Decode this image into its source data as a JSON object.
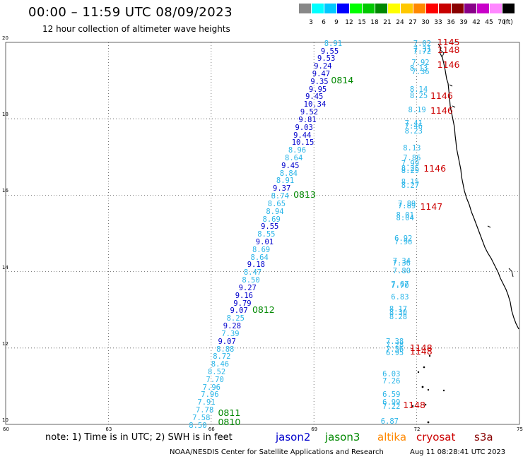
{
  "title": "00:00 – 11:59 UTC 08/09/2023",
  "subtitle": "12 hour collection of altimeter wave heights",
  "scale": {
    "labels": [
      "3",
      "6",
      "9",
      "12",
      "15",
      "18",
      "21",
      "24",
      "27",
      "30",
      "33",
      "36",
      "39",
      "42",
      "45",
      "70",
      "(ft)"
    ],
    "colors": [
      "#888888",
      "#00ffff",
      "#00c8ff",
      "#0000ff",
      "#00ff00",
      "#00c800",
      "#008800",
      "#ffff00",
      "#ffc800",
      "#ff8800",
      "#ff0000",
      "#c80000",
      "#880000",
      "#880088",
      "#c800c8",
      "#ff88ff",
      "#000000"
    ]
  },
  "axes": {
    "x_ticks": [
      "60",
      "63",
      "66",
      "69",
      "72",
      "75"
    ],
    "y_ticks": [
      "10",
      "12",
      "14",
      "16",
      "18",
      "20"
    ]
  },
  "legend": [
    {
      "name": "jason2",
      "color": "#0000cc"
    },
    {
      "name": "jason3",
      "color": "#008800"
    },
    {
      "name": "altika",
      "color": "#ff8800"
    },
    {
      "name": "cryosat",
      "color": "#cc0000"
    },
    {
      "name": "s3a",
      "color": "#880000"
    }
  ],
  "note": "note: 1) Time is in UTC; 2) SWH is in feet",
  "credit": "NOAA/NESDIS Center for Satellite Applications and Research",
  "timestamp": "Aug 11 08:28:41 UTC 2023",
  "track_times": [
    {
      "label": "0814",
      "lon": 69.5,
      "lat": 19.0,
      "color": "#008800"
    },
    {
      "label": "0813",
      "lon": 68.4,
      "lat": 16.0,
      "color": "#008800"
    },
    {
      "label": "0812",
      "lon": 67.2,
      "lat": 13.0,
      "color": "#008800"
    },
    {
      "label": "0811",
      "lon": 66.2,
      "lat": 10.3,
      "color": "#008800"
    },
    {
      "label": "0810",
      "lon": 66.2,
      "lat": 10.05,
      "color": "#008800"
    },
    {
      "label": "1145",
      "lon": 72.6,
      "lat": 20.0,
      "color": "#cc0000"
    },
    {
      "label": "1148",
      "lon": 72.6,
      "lat": 19.8,
      "color": "#cc0000"
    },
    {
      "label": "1146",
      "lon": 72.6,
      "lat": 19.4,
      "color": "#cc0000"
    },
    {
      "label": "1146",
      "lon": 72.4,
      "lat": 18.6,
      "color": "#cc0000"
    },
    {
      "label": "1146",
      "lon": 72.4,
      "lat": 18.2,
      "color": "#cc0000"
    },
    {
      "label": "1146",
      "lon": 72.2,
      "lat": 16.7,
      "color": "#cc0000"
    },
    {
      "label": "1147",
      "lon": 72.1,
      "lat": 15.7,
      "color": "#cc0000"
    },
    {
      "label": "1148",
      "lon": 71.8,
      "lat": 12.0,
      "color": "#cc0000"
    },
    {
      "label": "1148",
      "lon": 71.8,
      "lat": 11.9,
      "color": "#cc0000"
    },
    {
      "label": "1148",
      "lon": 71.6,
      "lat": 10.5,
      "color": "#cc0000"
    }
  ],
  "west_track": [
    {
      "v": "8.91",
      "lon": 69.3,
      "lat": 19.95,
      "c": "#2ab5e8"
    },
    {
      "v": "9.55",
      "lon": 69.2,
      "lat": 19.75,
      "c": "#0000cc"
    },
    {
      "v": "9.53",
      "lon": 69.1,
      "lat": 19.55,
      "c": "#0000cc"
    },
    {
      "v": "9.24",
      "lon": 69.0,
      "lat": 19.35,
      "c": "#0000cc"
    },
    {
      "v": "9.47",
      "lon": 68.95,
      "lat": 19.15,
      "c": "#0000cc"
    },
    {
      "v": "9.35",
      "lon": 68.9,
      "lat": 18.95,
      "c": "#0000cc"
    },
    {
      "v": "9.95",
      "lon": 68.85,
      "lat": 18.75,
      "c": "#0000cc"
    },
    {
      "v": "9.45",
      "lon": 68.75,
      "lat": 18.55,
      "c": "#0000cc"
    },
    {
      "v": "10.34",
      "lon": 68.7,
      "lat": 18.35,
      "c": "#0000cc"
    },
    {
      "v": "9.52",
      "lon": 68.6,
      "lat": 18.15,
      "c": "#0000cc"
    },
    {
      "v": "9.81",
      "lon": 68.55,
      "lat": 17.95,
      "c": "#0000cc"
    },
    {
      "v": "9.03",
      "lon": 68.45,
      "lat": 17.75,
      "c": "#0000cc"
    },
    {
      "v": "9.44",
      "lon": 68.4,
      "lat": 17.55,
      "c": "#0000cc"
    },
    {
      "v": "10.15",
      "lon": 68.35,
      "lat": 17.35,
      "c": "#0000cc"
    },
    {
      "v": "8.96",
      "lon": 68.25,
      "lat": 17.15,
      "c": "#2ab5e8"
    },
    {
      "v": "8.64",
      "lon": 68.15,
      "lat": 16.95,
      "c": "#2ab5e8"
    },
    {
      "v": "9.45",
      "lon": 68.05,
      "lat": 16.75,
      "c": "#0000cc"
    },
    {
      "v": "8.84",
      "lon": 68.0,
      "lat": 16.55,
      "c": "#2ab5e8"
    },
    {
      "v": "8.91",
      "lon": 67.9,
      "lat": 16.35,
      "c": "#2ab5e8"
    },
    {
      "v": "9.37",
      "lon": 67.8,
      "lat": 16.15,
      "c": "#0000cc"
    },
    {
      "v": "8.74",
      "lon": 67.75,
      "lat": 15.95,
      "c": "#2ab5e8"
    },
    {
      "v": "8.65",
      "lon": 67.65,
      "lat": 15.75,
      "c": "#2ab5e8"
    },
    {
      "v": "8.94",
      "lon": 67.6,
      "lat": 15.55,
      "c": "#2ab5e8"
    },
    {
      "v": "8.69",
      "lon": 67.5,
      "lat": 15.35,
      "c": "#2ab5e8"
    },
    {
      "v": "9.55",
      "lon": 67.45,
      "lat": 15.15,
      "c": "#0000cc"
    },
    {
      "v": "8.55",
      "lon": 67.35,
      "lat": 14.95,
      "c": "#2ab5e8"
    },
    {
      "v": "9.01",
      "lon": 67.3,
      "lat": 14.75,
      "c": "#0000cc"
    },
    {
      "v": "8.69",
      "lon": 67.2,
      "lat": 14.55,
      "c": "#2ab5e8"
    },
    {
      "v": "8.64",
      "lon": 67.15,
      "lat": 14.35,
      "c": "#2ab5e8"
    },
    {
      "v": "9.18",
      "lon": 67.05,
      "lat": 14.15,
      "c": "#0000cc"
    },
    {
      "v": "8.47",
      "lon": 66.95,
      "lat": 13.95,
      "c": "#2ab5e8"
    },
    {
      "v": "8.50",
      "lon": 66.9,
      "lat": 13.75,
      "c": "#2ab5e8"
    },
    {
      "v": "9.27",
      "lon": 66.8,
      "lat": 13.55,
      "c": "#0000cc"
    },
    {
      "v": "9.16",
      "lon": 66.7,
      "lat": 13.35,
      "c": "#0000cc"
    },
    {
      "v": "9.79",
      "lon": 66.65,
      "lat": 13.15,
      "c": "#0000cc"
    },
    {
      "v": "9.07",
      "lon": 66.55,
      "lat": 12.95,
      "c": "#0000cc"
    },
    {
      "v": "8.25",
      "lon": 66.45,
      "lat": 12.75,
      "c": "#2ab5e8"
    },
    {
      "v": "9.28",
      "lon": 66.35,
      "lat": 12.55,
      "c": "#0000cc"
    },
    {
      "v": "7.39",
      "lon": 66.3,
      "lat": 12.35,
      "c": "#2ab5e8"
    },
    {
      "v": "9.07",
      "lon": 66.2,
      "lat": 12.15,
      "c": "#0000cc"
    },
    {
      "v": "8.88",
      "lon": 66.15,
      "lat": 11.95,
      "c": "#2ab5e8"
    },
    {
      "v": "8.72",
      "lon": 66.05,
      "lat": 11.75,
      "c": "#2ab5e8"
    },
    {
      "v": "8.46",
      "lon": 66.0,
      "lat": 11.55,
      "c": "#2ab5e8"
    },
    {
      "v": "8.52",
      "lon": 65.9,
      "lat": 11.35,
      "c": "#2ab5e8"
    },
    {
      "v": "7.70",
      "lon": 65.85,
      "lat": 11.15,
      "c": "#2ab5e8"
    },
    {
      "v": "7.96",
      "lon": 65.75,
      "lat": 10.95,
      "c": "#2ab5e8"
    },
    {
      "v": "7.96",
      "lon": 65.7,
      "lat": 10.75,
      "c": "#2ab5e8"
    },
    {
      "v": "7.91",
      "lon": 65.6,
      "lat": 10.55,
      "c": "#2ab5e8"
    },
    {
      "v": "7.78",
      "lon": 65.55,
      "lat": 10.35,
      "c": "#2ab5e8"
    },
    {
      "v": "7.58",
      "lon": 65.45,
      "lat": 10.15,
      "c": "#2ab5e8"
    },
    {
      "v": "8.50",
      "lon": 65.35,
      "lat": 9.95,
      "c": "#2ab5e8"
    }
  ],
  "east_track": [
    {
      "v": "7.02",
      "lon": 71.9,
      "lat": 19.95
    },
    {
      "v": "7.31",
      "lon": 71.9,
      "lat": 19.8
    },
    {
      "v": "7.72",
      "lon": 71.9,
      "lat": 19.75
    },
    {
      "v": "7.92",
      "lon": 71.85,
      "lat": 19.45
    },
    {
      "v": "8.13",
      "lon": 71.8,
      "lat": 19.3
    },
    {
      "v": "7.36",
      "lon": 71.85,
      "lat": 19.2
    },
    {
      "v": "8.14",
      "lon": 71.8,
      "lat": 18.75
    },
    {
      "v": "8.25",
      "lon": 71.8,
      "lat": 18.58
    },
    {
      "v": "8.19",
      "lon": 71.75,
      "lat": 18.2
    },
    {
      "v": "7.41",
      "lon": 71.65,
      "lat": 17.85
    },
    {
      "v": "7.46",
      "lon": 71.65,
      "lat": 17.78
    },
    {
      "v": "8.23",
      "lon": 71.65,
      "lat": 17.65
    },
    {
      "v": "8.13",
      "lon": 71.6,
      "lat": 17.2
    },
    {
      "v": "7.86",
      "lon": 71.6,
      "lat": 16.95
    },
    {
      "v": "7.99",
      "lon": 71.55,
      "lat": 16.8
    },
    {
      "v": "8.25",
      "lon": 71.55,
      "lat": 16.68
    },
    {
      "v": "8.29",
      "lon": 71.55,
      "lat": 16.62
    },
    {
      "v": "8.15",
      "lon": 71.55,
      "lat": 16.32
    },
    {
      "v": "8.27",
      "lon": 71.55,
      "lat": 16.22
    },
    {
      "v": "7.89",
      "lon": 71.45,
      "lat": 15.75
    },
    {
      "v": "7.89",
      "lon": 71.45,
      "lat": 15.7
    },
    {
      "v": "8.01",
      "lon": 71.4,
      "lat": 15.45
    },
    {
      "v": "8.04",
      "lon": 71.4,
      "lat": 15.38
    },
    {
      "v": "6.92",
      "lon": 71.35,
      "lat": 14.85
    },
    {
      "v": "7.96",
      "lon": 71.35,
      "lat": 14.75
    },
    {
      "v": "7.34",
      "lon": 71.3,
      "lat": 14.25
    },
    {
      "v": "7.36",
      "lon": 71.3,
      "lat": 14.2
    },
    {
      "v": "7.80",
      "lon": 71.3,
      "lat": 14.0
    },
    {
      "v": "7.67",
      "lon": 71.25,
      "lat": 13.65
    },
    {
      "v": "7.70",
      "lon": 71.25,
      "lat": 13.6
    },
    {
      "v": "6.83",
      "lon": 71.25,
      "lat": 13.3
    },
    {
      "v": "8.17",
      "lon": 71.2,
      "lat": 13.0
    },
    {
      "v": "8.30",
      "lon": 71.2,
      "lat": 12.9
    },
    {
      "v": "8.28",
      "lon": 71.2,
      "lat": 12.8
    },
    {
      "v": "7.38",
      "lon": 71.1,
      "lat": 12.15
    },
    {
      "v": "7.28",
      "lon": 71.1,
      "lat": 12.05
    },
    {
      "v": "7.56",
      "lon": 71.1,
      "lat": 11.95
    },
    {
      "v": "6.95",
      "lon": 71.1,
      "lat": 11.85
    },
    {
      "v": "6.03",
      "lon": 71.0,
      "lat": 11.3
    },
    {
      "v": "7.26",
      "lon": 71.0,
      "lat": 11.1
    },
    {
      "v": "6.59",
      "lon": 71.0,
      "lat": 10.75
    },
    {
      "v": "6.99",
      "lon": 71.0,
      "lat": 10.55
    },
    {
      "v": "7.22",
      "lon": 71.0,
      "lat": 10.45
    },
    {
      "v": "6.87",
      "lon": 70.95,
      "lat": 10.05
    }
  ],
  "east_color": "#2ab5e8"
}
